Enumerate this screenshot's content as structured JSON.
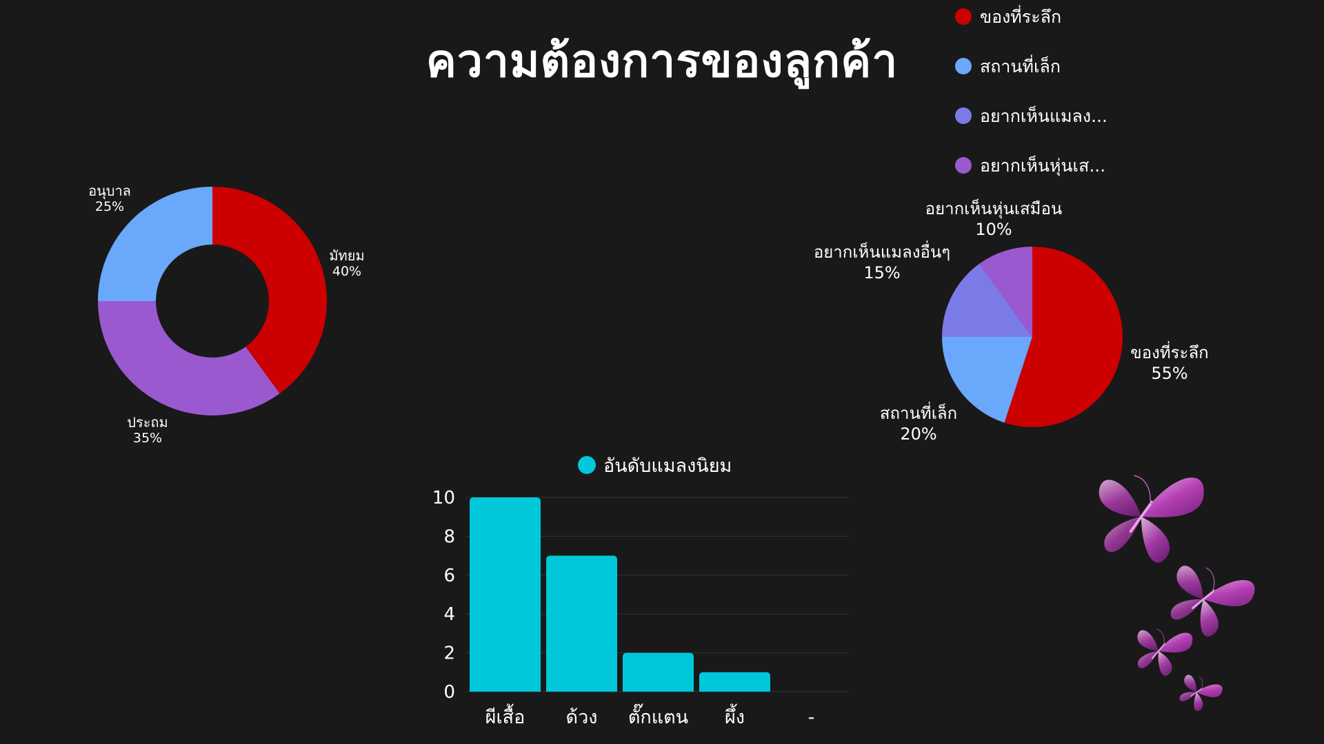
{
  "title": "ความต้องการของลูกค้า",
  "colors": {
    "background": "#191919",
    "red": "#cc0000",
    "blue": "#6aa8fb",
    "periwinkle": "#7b7be8",
    "purple": "#9b59d0",
    "cyan": "#00c8da"
  },
  "decoration": {
    "icon": "butterfly-icon",
    "count": 4
  },
  "chart_data": [
    {
      "type": "pie",
      "variant": "donut",
      "slices": [
        {
          "label": "มัทยม",
          "value": 40,
          "display": "40%",
          "color": "#cc0000"
        },
        {
          "label": "ประถม",
          "value": 35,
          "display": "35%",
          "color": "#9b59d0"
        },
        {
          "label": "อนุบาล",
          "value": 25,
          "display": "25%",
          "color": "#6aa8fb"
        }
      ]
    },
    {
      "type": "pie",
      "slices": [
        {
          "label": "ของที่ระลึก",
          "value": 55,
          "display": "55%",
          "color": "#cc0000"
        },
        {
          "label": "สถานที่เล็ก",
          "value": 20,
          "display": "20%",
          "color": "#6aa8fb"
        },
        {
          "label": "อยากเห็นแมลงอื่นๆ",
          "value": 15,
          "display": "15%",
          "color": "#7b7be8"
        },
        {
          "label": "อยากเห็นหุ่นเสมือน",
          "value": 10,
          "display": "10%",
          "color": "#9b59d0"
        }
      ],
      "legend": {
        "position": "top-right",
        "entries": [
          "ของที่ระลึก",
          "สถานที่เล็ก",
          "อยากเห็นแมลง...",
          "อยากเห็นหุ่นเส..."
        ]
      }
    },
    {
      "type": "bar",
      "categories": [
        "ผีเสื้อ",
        "ด้วง",
        "ตั๊กแตน",
        "ผึ้ง",
        "-"
      ],
      "series": [
        {
          "name": "อันดับแมลงนิยม",
          "values": [
            10,
            7,
            2,
            1,
            0
          ],
          "color": "#00c8da"
        }
      ],
      "yticks": [
        "0",
        "2",
        "4",
        "6",
        "8",
        "10"
      ],
      "ylim": [
        0,
        10
      ],
      "grid": true,
      "legend": {
        "position": "top"
      }
    }
  ]
}
